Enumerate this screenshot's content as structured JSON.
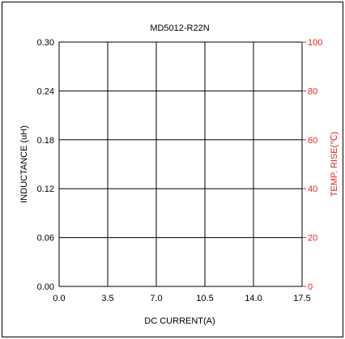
{
  "chart_data": {
    "type": "line",
    "title": "MD5012-R22N",
    "xlabel": "DC CURRENT(A)",
    "ylabel": "INDUCTANCE (uH)",
    "y2label": "TEMP. RISE(℃)",
    "xlim": [
      0,
      17.5
    ],
    "ylim": [
      0,
      0.3
    ],
    "y2lim": [
      0,
      100
    ],
    "x_ticks": [
      "0.0",
      "3.5",
      "7.0",
      "10.5",
      "14.0",
      "17.5"
    ],
    "y_ticks": [
      "0.00",
      "0.06",
      "0.12",
      "0.18",
      "0.24",
      "0.30"
    ],
    "y2_ticks": [
      "0",
      "20",
      "40",
      "60",
      "80",
      "100"
    ],
    "grid": true,
    "series": [],
    "colors": {
      "axis": "#000000",
      "secondary_axis": "#e8231c",
      "grid": "#000000"
    }
  }
}
